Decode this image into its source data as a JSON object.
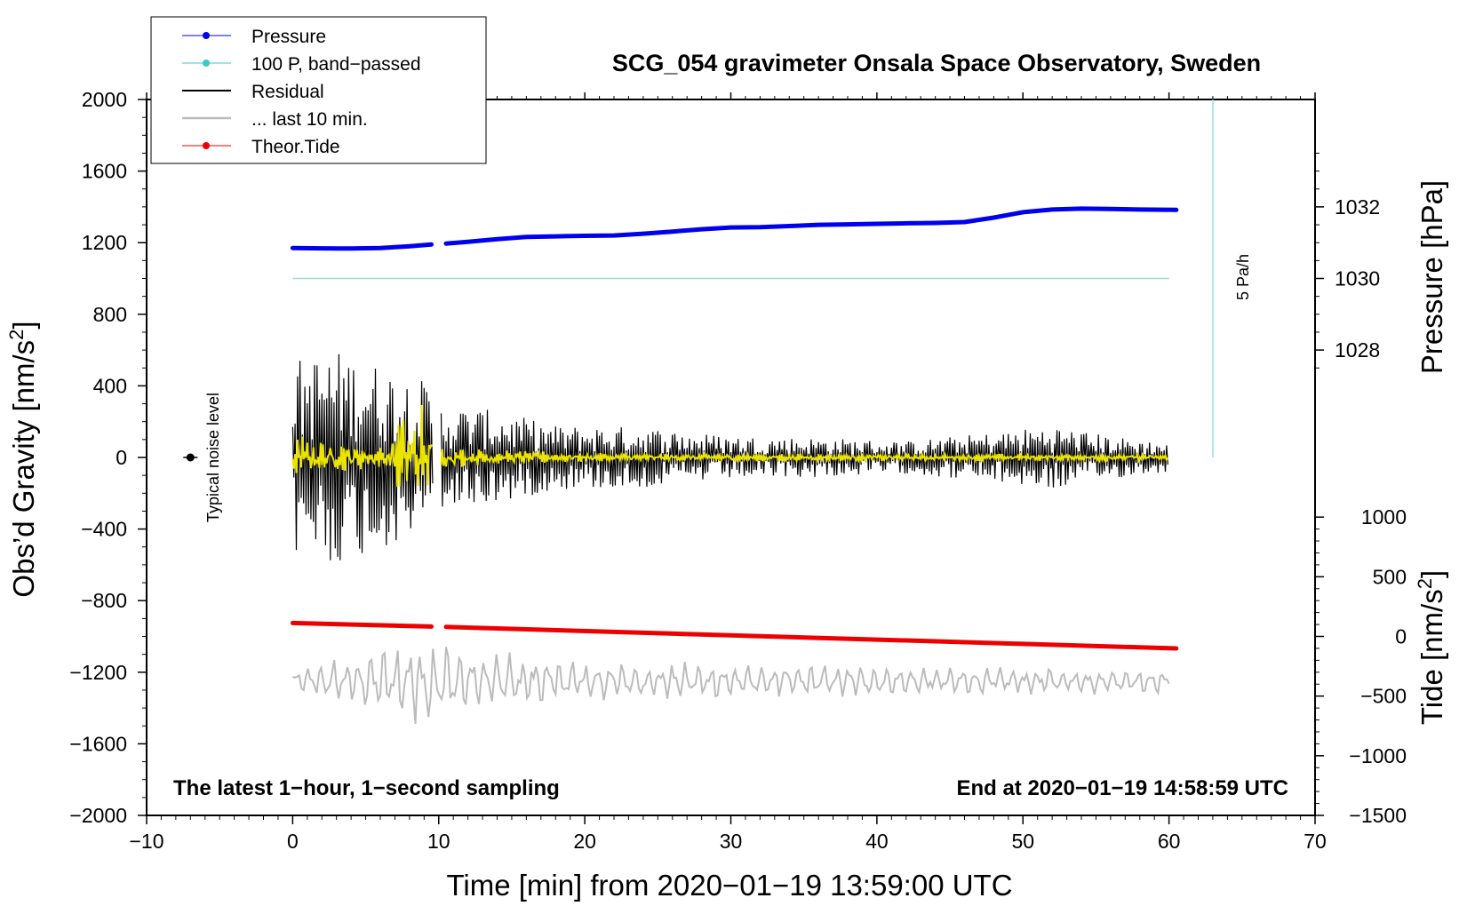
{
  "chart_data": {
    "type": "line",
    "title": "SCG_054 gravimeter Onsala Space Observatory, Sweden",
    "xlabel": "Time [min] from 2020−01−19 13:59:00 UTC",
    "ylabel": "Obs’d Gravity [nm/s",
    "ylabel_sup": "2",
    "ylabel_tail": "]",
    "xlim": [
      -10,
      70
    ],
    "ylim": [
      -2000,
      2000
    ],
    "x_ticks": [
      -10,
      0,
      10,
      20,
      30,
      40,
      50,
      60,
      70
    ],
    "x_tick_labels": [
      "−10",
      "0",
      "10",
      "20",
      "30",
      "40",
      "50",
      "60",
      "70"
    ],
    "y_ticks": [
      -2000,
      -1600,
      -1200,
      -800,
      -400,
      0,
      400,
      800,
      1200,
      1600,
      2000
    ],
    "y_tick_labels": [
      "−2000",
      "−1600",
      "−1200",
      "−800",
      "−400",
      "0",
      "400",
      "800",
      "1200",
      "1600",
      "2000"
    ],
    "right_axes": [
      {
        "name": "pressure",
        "label": "Pressure [hPa]",
        "ticks": [
          1028,
          1030,
          1032
        ],
        "tick_labels": [
          "1028",
          "1030",
          "1032"
        ],
        "gravity_at_1030": 1000,
        "gravity_per_hPa": 200
      },
      {
        "name": "tide",
        "label": "Tide [nm/s",
        "label_sup": "2",
        "label_tail": "]",
        "ticks": [
          1000,
          500,
          0,
          -500,
          -1000,
          -1500
        ],
        "tick_labels": [
          "1000",
          "500",
          "0",
          "−500",
          "−1000",
          "−1500"
        ],
        "gravity_at_0": -1000,
        "gravity_per_unit": 0.6667
      }
    ],
    "legend": [
      {
        "label": "Pressure",
        "color": "#0000ee",
        "marker": true
      },
      {
        "label": "100 P, band−passed",
        "color": "#33cccc",
        "marker": true
      },
      {
        "label": "Residual",
        "color": "#000000",
        "marker": false
      },
      {
        "label": "... last 10 min.",
        "color": "#bbbbbb",
        "marker": false
      },
      {
        "label": "Theor.Tide",
        "color": "#ee0000",
        "marker": true
      }
    ],
    "series": [
      {
        "name": "Pressure (gravity units)",
        "color": "#0000ee",
        "gap": [
          9.5,
          10.5
        ],
        "x": [
          0,
          2,
          4,
          6,
          8,
          9.5,
          10.5,
          12,
          14,
          16,
          18,
          20,
          22,
          24,
          26,
          28,
          30,
          32,
          34,
          36,
          38,
          40,
          42,
          44,
          46,
          48,
          50,
          52,
          54,
          56,
          58,
          60.5
        ],
        "values": [
          1170,
          1168,
          1167,
          1170,
          1180,
          1190,
          1195,
          1205,
          1220,
          1232,
          1235,
          1238,
          1240,
          1250,
          1262,
          1275,
          1285,
          1287,
          1293,
          1300,
          1302,
          1305,
          1308,
          1310,
          1315,
          1340,
          1370,
          1385,
          1390,
          1388,
          1385,
          1383
        ]
      },
      {
        "name": "100 P, band-passed",
        "color": "#99dddd",
        "x": [
          0,
          60
        ],
        "values": [
          1000,
          1000
        ]
      },
      {
        "name": "5 Pa/h scale bar",
        "color": "#99dddd",
        "x": [
          63,
          63
        ],
        "values": [
          0,
          2000
        ],
        "label": "5 Pa/h"
      },
      {
        "name": "Theor.Tide (gravity units)",
        "color": "#ee0000",
        "gap": [
          9.5,
          10.5
        ],
        "x": [
          0,
          9.5,
          10.5,
          60.5
        ],
        "values": [
          -925,
          -945,
          -947,
          -1067
        ]
      },
      {
        "name": "Residual",
        "color": "#000000",
        "gap": [
          9.6,
          10.1
        ],
        "range": [
          0,
          60
        ],
        "amplitude": [
          [
            0,
            550
          ],
          [
            3,
            600
          ],
          [
            6,
            520
          ],
          [
            9,
            430
          ],
          [
            10,
            300
          ],
          [
            14,
            260
          ],
          [
            18,
            180
          ],
          [
            24,
            170
          ],
          [
            30,
            120
          ],
          [
            36,
            110
          ],
          [
            42,
            90
          ],
          [
            48,
            140
          ],
          [
            52,
            180
          ],
          [
            56,
            120
          ],
          [
            60,
            80
          ]
        ]
      },
      {
        "name": "... last 10 min.",
        "color": "#ebe300",
        "gap": [
          9.6,
          10.1
        ],
        "range": [
          0,
          60
        ],
        "amplitude": [
          [
            0,
            150
          ],
          [
            2,
            90
          ],
          [
            6,
            60
          ],
          [
            8.5,
            380
          ],
          [
            9.5,
            200
          ],
          [
            10.2,
            60
          ],
          [
            20,
            25
          ],
          [
            60,
            18
          ]
        ]
      },
      {
        "name": "Detided low-pass (offset -1250)",
        "color": "#bbbbbb",
        "offset": -1250,
        "range": [
          0,
          60
        ],
        "amplitude": [
          [
            0,
            60
          ],
          [
            6,
            160
          ],
          [
            9,
            250
          ],
          [
            12,
            160
          ],
          [
            20,
            100
          ],
          [
            40,
            75
          ],
          [
            60,
            60
          ]
        ]
      }
    ],
    "noise_level": {
      "x": -7,
      "y": 0,
      "label": "Typical noise level"
    },
    "footer_left": "The latest 1−hour, 1−second sampling",
    "footer_right": "End at 2020−01−19 14:58:59 UTC"
  }
}
